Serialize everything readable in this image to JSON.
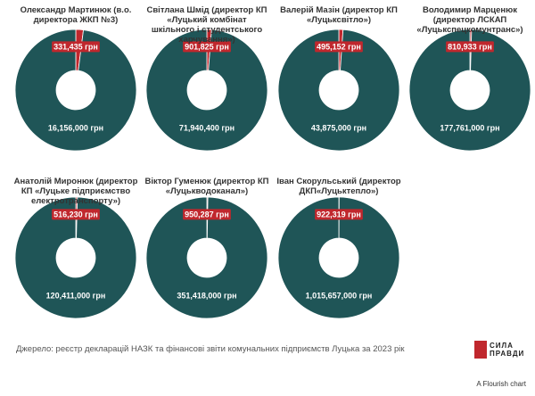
{
  "chart_data": [
    {
      "type": "pie",
      "title": "Олександр Мартинюк (в.о. директора ЖКП №3)",
      "values": [
        331435,
        16156000
      ],
      "value_labels": [
        "331,435 грн",
        "16,156,000 грн"
      ],
      "colors": [
        "#c0272d",
        "#1f5557"
      ]
    },
    {
      "type": "pie",
      "title": "Світлана Шмід (директор КП «Луцький комбінат шкільного і студентського харчування»)",
      "values": [
        901825,
        71940400
      ],
      "value_labels": [
        "901,825 грн",
        "71,940,400 грн"
      ],
      "colors": [
        "#c0272d",
        "#1f5557"
      ]
    },
    {
      "type": "pie",
      "title": "Валерій Мазін (директор КП «Луцьксвітло»)",
      "values": [
        495152,
        43875000
      ],
      "value_labels": [
        "495,152 грн",
        "43,875,000 грн"
      ],
      "colors": [
        "#c0272d",
        "#1f5557"
      ]
    },
    {
      "type": "pie",
      "title": "Володимир Марценюк (директор ЛСКАП «Луцькспецкомунтранс»)",
      "values": [
        810933,
        177761000
      ],
      "value_labels": [
        "810,933 грн",
        "177,761,000 грн"
      ],
      "colors": [
        "#c0272d",
        "#1f5557"
      ]
    },
    {
      "type": "pie",
      "title": "Анатолій Миронюк (директор КП «Луцьке підприємство електротранспорту»)",
      "values": [
        516230,
        120411000
      ],
      "value_labels": [
        "516,230 грн",
        "120,411,000 грн"
      ],
      "colors": [
        "#c0272d",
        "#1f5557"
      ]
    },
    {
      "type": "pie",
      "title": "Віктор Гуменюк (директор КП «Луцькводоканал»)",
      "values": [
        950287,
        351418000
      ],
      "value_labels": [
        "950,287 грн",
        "351,418,000 грн"
      ],
      "colors": [
        "#c0272d",
        "#1f5557"
      ]
    },
    {
      "type": "pie",
      "title": "Іван Скорульський (директор ДКП«Луцьктепло»)",
      "values": [
        922319,
        1015657000
      ],
      "value_labels": [
        "922,319 грн",
        "1,015,657,000 грн"
      ],
      "colors": [
        "#c0272d",
        "#1f5557"
      ]
    }
  ],
  "source": "Джерело: реєстр декларацій НАЗК та фінансові звіти комунальних підприємств Луцька за 2023 рік",
  "logo": [
    "СИЛА",
    "ПРАВДИ"
  ],
  "credit": "A Flourish chart"
}
